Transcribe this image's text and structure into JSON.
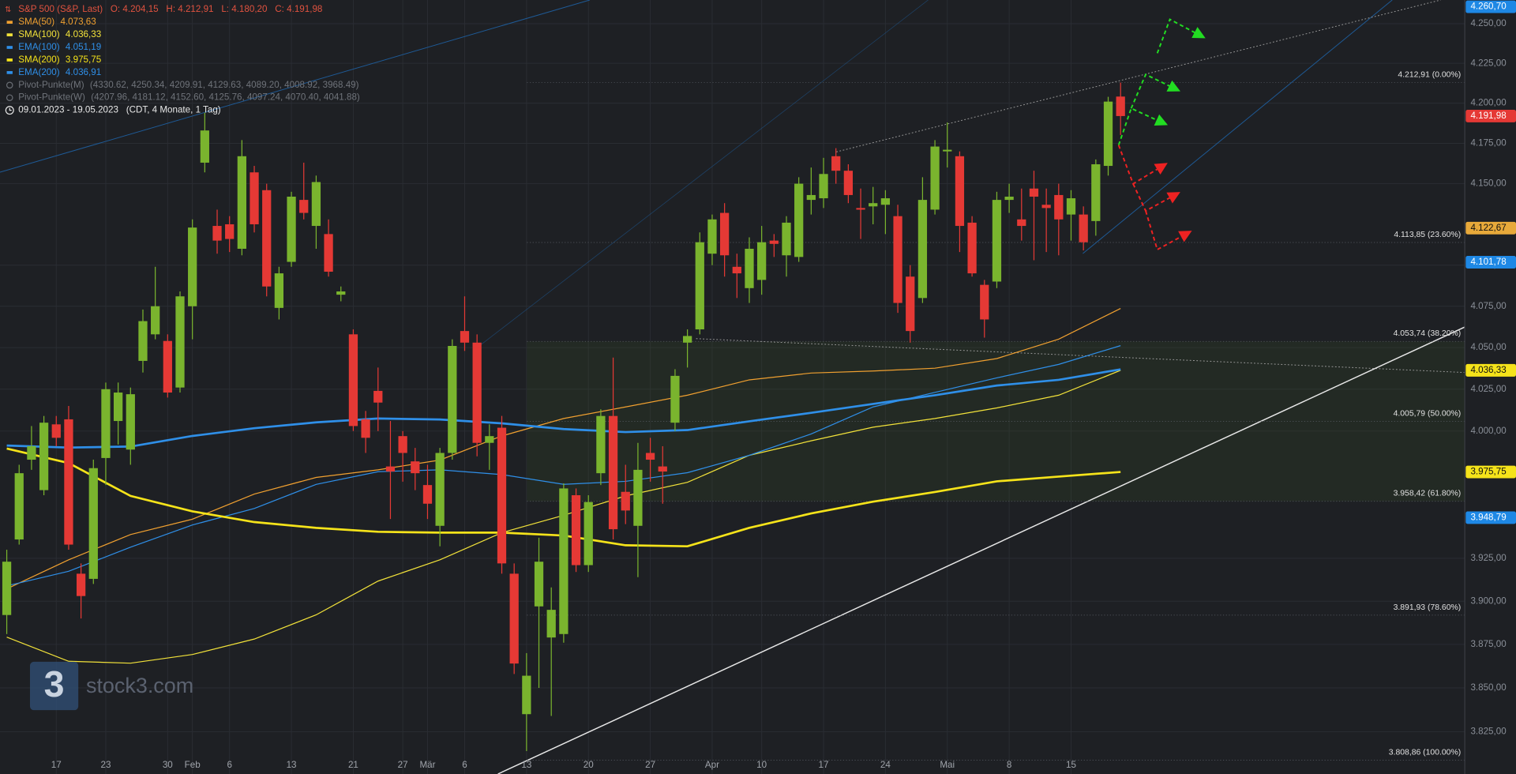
{
  "chart_data": {
    "type": "candlestick",
    "header": {
      "symbol": "S&P 500 (S&P, Last)",
      "ohlc": [
        "O: 4.204,15",
        "H: 4.212,91",
        "L: 4.180,20",
        "C: 4.191,98"
      ]
    },
    "pivots": [
      {
        "name": "Pivot-Punkte(M)",
        "levels": "(4330.62, 4250.34, 4209.91, 4129.63, 4089.20, 4008.92, 3968.49)"
      },
      {
        "name": "Pivot-Punkte(W)",
        "levels": "(4207.96, 4181.12, 4152.60, 4125.76, 4097.24, 4070.40, 4041.88)"
      }
    ],
    "date_range": "09.01.2023 - 19.05.2023",
    "range_note": "(CDT, 4 Monate, 1 Tag)",
    "watermark": {
      "logo": "3",
      "text": "stock3.com"
    },
    "log_scale": true,
    "grid": true,
    "ylim": [
      3801,
      4265
    ],
    "yticks": [
      {
        "value": 3825,
        "label": "3.825,00"
      },
      {
        "value": 3850,
        "label": "3.850,00"
      },
      {
        "value": 3875,
        "label": "3.875,00"
      },
      {
        "value": 3900,
        "label": "3.900,00"
      },
      {
        "value": 3925,
        "label": "3.925,00"
      },
      {
        "value": 4000,
        "label": "4.000,00"
      },
      {
        "value": 4025,
        "label": "4.025,00"
      },
      {
        "value": 4050,
        "label": "4.050,00"
      },
      {
        "value": 4075,
        "label": "4.075,00"
      },
      {
        "value": 4100,
        "label": "4.100,00"
      },
      {
        "value": 4150,
        "label": "4.150,00"
      },
      {
        "value": 4175,
        "label": "4.175,00"
      },
      {
        "value": 4200,
        "label": "4.200,00"
      },
      {
        "value": 4225,
        "label": "4.225,00"
      },
      {
        "value": 4250,
        "label": "4.250,00"
      }
    ],
    "categories": [
      null,
      null,
      null,
      null,
      "17",
      null,
      null,
      null,
      "23",
      null,
      null,
      null,
      null,
      "30",
      null,
      "Feb",
      null,
      null,
      "6",
      null,
      null,
      null,
      null,
      "13",
      null,
      null,
      null,
      null,
      "21",
      null,
      null,
      null,
      "27",
      null,
      "Mär",
      null,
      null,
      "6",
      null,
      null,
      null,
      null,
      "13",
      null,
      null,
      null,
      null,
      "20",
      null,
      null,
      null,
      null,
      "27",
      null,
      null,
      null,
      null,
      "Apr",
      null,
      null,
      null,
      "10",
      null,
      null,
      null,
      null,
      "17",
      null,
      null,
      null,
      null,
      "24",
      null,
      null,
      null,
      null,
      "Mai",
      null,
      null,
      null,
      null,
      "8",
      null,
      null,
      null,
      null,
      "15",
      null,
      null,
      null,
      null
    ],
    "up_color": "#7ab42e",
    "down_color": "#e53935",
    "open": [
      3892,
      3936,
      3983,
      3965,
      4004,
      4007,
      3916,
      3913,
      3984,
      4006,
      3989,
      4042,
      4058,
      4054,
      4026,
      4075,
      4163,
      4124,
      4125,
      4110,
      4157,
      4146,
      4074,
      4102,
      4140,
      4124,
      4119,
      4082,
      4058,
      4007,
      4024,
      3979,
      3997,
      3982,
      3968,
      3944,
      3987,
      4060,
      4053,
      3993,
      4002,
      3916,
      3835,
      3897,
      3879,
      3881,
      3962,
      3921,
      3975,
      4009,
      3964,
      3944,
      3987,
      3979,
      4005,
      4053,
      4061,
      4107,
      4132,
      4099,
      4086,
      4091,
      4115,
      4106,
      4105,
      4140,
      4141,
      4167,
      4158,
      4135,
      4136,
      4137,
      4130,
      4093,
      4080,
      4134,
      4170,
      4167,
      4126,
      4088,
      4090,
      4140,
      4128,
      4147,
      4137,
      4143,
      4131,
      4131,
      4127,
      4161,
      4204.15
    ],
    "high": [
      3930,
      3980,
      4003,
      4009,
      4009,
      4015,
      3922,
      3983,
      4029,
      4029,
      4026,
      4073,
      4099,
      4058,
      4084,
      4128,
      4194,
      4134,
      4130,
      4177,
      4161,
      4150,
      4099,
      4145,
      4163,
      4155,
      4128,
      4087,
      4061,
      4012,
      4038,
      4006,
      4000,
      3990,
      3980,
      3990,
      4055,
      4081,
      4058,
      4004,
      4009,
      3922,
      3870,
      3937,
      3908,
      3969,
      3966,
      3962,
      4013,
      4044,
      3980,
      3993,
      3996,
      3991,
      4037,
      4061,
      4120,
      4131,
      4138,
      4107,
      4117,
      4124,
      4119,
      4130,
      4154,
      4160,
      4166,
      4172,
      4162,
      4147,
      4148,
      4146,
      4137,
      4100,
      4154,
      4177,
      4188,
      4170,
      4130,
      4091,
      4145,
      4150,
      4147,
      4158,
      4147,
      4150,
      4146,
      4136,
      4165,
      4204,
      4212.91
    ],
    "low": [
      3881,
      3933,
      3977,
      3962,
      3991,
      3930,
      3890,
      3910,
      3968,
      3992,
      3980,
      4035,
      4055,
      4020,
      4023,
      4055,
      4157,
      4107,
      4108,
      4106,
      4120,
      4081,
      4067,
      4099,
      4128,
      4110,
      4093,
      4078,
      4000,
      3987,
      4000,
      3948,
      3970,
      3965,
      3948,
      3932,
      3983,
      4048,
      3985,
      3977,
      3916,
      3858,
      3814,
      3850,
      3834,
      3876,
      3917,
      3917,
      3968,
      3936,
      3945,
      3914,
      3970,
      3957,
      4000,
      4038,
      4058,
      4100,
      4093,
      4080,
      4077,
      4082,
      4105,
      4093,
      4102,
      4131,
      4135,
      4150,
      4138,
      4116,
      4125,
      4119,
      4071,
      4053,
      4077,
      4131,
      4160,
      4108,
      4093,
      4056,
      4086,
      4132,
      4115,
      4103,
      4108,
      4106,
      4115,
      4109,
      4118,
      4155,
      4180.2
    ],
    "close": [
      3923,
      3975,
      3991,
      4005,
      3996,
      3933,
      3903,
      3978,
      4025,
      4023,
      4022,
      4066,
      4075,
      4023,
      4081,
      4123,
      4183,
      4115,
      4116,
      4167,
      4125,
      4087,
      4095,
      4142,
      4132,
      4151,
      4096,
      4084,
      4003,
      3996,
      4017,
      3976,
      3987,
      3975,
      3957,
      3987,
      4051,
      4053,
      3993,
      3997,
      3922,
      3864,
      3857,
      3923,
      3895,
      3966,
      3921,
      3958,
      4009,
      3942,
      3953,
      3977,
      3983,
      3976,
      4033,
      4057,
      4114,
      4128,
      4106,
      4095,
      4110,
      4114,
      4113,
      4126,
      4150,
      4143,
      4156,
      4158,
      4143,
      4134,
      4138,
      4141,
      4077,
      4060,
      4140,
      4173,
      4171,
      4124,
      4095,
      4067,
      4140,
      4142,
      4124,
      4142,
      4135,
      4128,
      4141,
      4114,
      4162,
      4201,
      4191.98
    ],
    "series": [
      {
        "name": "SMA(50)",
        "color": "#f0a030",
        "width": 1,
        "last_label": "4.073,63",
        "x": [
          0,
          5,
          10,
          15,
          20,
          25,
          30,
          35,
          40,
          45,
          50,
          55,
          60,
          65,
          70,
          75,
          80,
          85,
          90
        ],
        "values": [
          3907.2,
          3924.1,
          3938.9,
          3947.9,
          3962.7,
          3972.5,
          3977,
          3982.8,
          3997.1,
          4007.5,
          4014.4,
          4021.4,
          4030.6,
          4034.7,
          4035.9,
          4037.6,
          4043.4,
          4055.1,
          4073.63
        ]
      },
      {
        "name": "SMA(100)",
        "color": "#f2e23a",
        "width": 1,
        "last_label": "4.036,33",
        "x": [
          0,
          5,
          10,
          15,
          20,
          25,
          30,
          35,
          40,
          45,
          50,
          55,
          60,
          65,
          70,
          75,
          80,
          85,
          90
        ],
        "values": [
          3879.2,
          3865.3,
          3864.2,
          3869.2,
          3878.1,
          3892.1,
          3911.7,
          3924.1,
          3940,
          3950.2,
          3961.6,
          3969.6,
          3985.6,
          3994.2,
          4002.3,
          4007.5,
          4013.8,
          4021.4,
          4036.33
        ]
      },
      {
        "name": "EMA(100)",
        "color": "#2f8fe8",
        "width": 1,
        "last_label": "4.051,19",
        "x": [
          0,
          5,
          10,
          15,
          20,
          25,
          30,
          35,
          40,
          45,
          50,
          55,
          60,
          65,
          70,
          75,
          80,
          85,
          90
        ],
        "values": [
          3908.9,
          3917.4,
          3931.5,
          3944.5,
          3954.2,
          3968.4,
          3975.9,
          3977,
          3974.2,
          3968.4,
          3970.2,
          3975.3,
          3985.6,
          3998.3,
          4014.4,
          4023.1,
          4031.8,
          4039.9,
          4051.19
        ]
      },
      {
        "name": "SMA(200)",
        "color": "#f5e31a",
        "width": 2.2,
        "last_label": "3.975,75",
        "x": [
          0,
          5,
          10,
          15,
          20,
          25,
          30,
          35,
          40,
          45,
          50,
          55,
          60,
          65,
          70,
          75,
          80,
          85,
          90
        ],
        "values": [
          3989.6,
          3981,
          3961.6,
          3952.5,
          3946.2,
          3942.8,
          3940.5,
          3940,
          3940,
          3938.3,
          3932.6,
          3932,
          3942.8,
          3951.3,
          3958.2,
          3963.9,
          3970.2,
          3973,
          3975.75
        ]
      },
      {
        "name": "EMA(200)",
        "color": "#2f8fe8",
        "width": 2.2,
        "last_label": "4.036,91",
        "x": [
          0,
          5,
          10,
          15,
          20,
          25,
          30,
          35,
          40,
          45,
          50,
          55,
          60,
          65,
          70,
          75,
          80,
          85,
          90
        ],
        "values": [
          3991.4,
          3990.2,
          3990.8,
          3997.1,
          4001.7,
          4005.2,
          4007.5,
          4006.9,
          4004.6,
          4001.2,
          3999.4,
          4000.6,
          4005.8,
          4010.9,
          4016.2,
          4021.4,
          4027.2,
          4030.6,
          4036.91
        ]
      }
    ],
    "fib_levels": [
      {
        "value": 4212.91,
        "label": "4.212,91 (0.00%)"
      },
      {
        "value": 4113.85,
        "label": "4.113,85 (23.60%)"
      },
      {
        "value": 4053.74,
        "label": "4.053,74 (38.20%)"
      },
      {
        "value": 4005.79,
        "label": "4.005,79 (50.00%)"
      },
      {
        "value": 3958.42,
        "label": "3.958,42 (61.80%)"
      },
      {
        "value": 3891.93,
        "label": "3.891,93 (78.60%)"
      },
      {
        "value": 3808.86,
        "label": "3.808,86 (100.00%)"
      }
    ],
    "price_markers": [
      {
        "value": 4260.7,
        "label": "4.260,70",
        "color": "#1e88e5"
      },
      {
        "value": 4191.98,
        "label": "4.191,98",
        "color": "#e53935"
      },
      {
        "value": 4122.67,
        "label": "4.122,67",
        "color": "#e8a93a"
      },
      {
        "value": 4101.78,
        "label": "4.101,78",
        "color": "#1e88e5"
      },
      {
        "value": 4036.33,
        "label": "4.036,33",
        "color": "#f5e31a"
      },
      {
        "value": 3975.75,
        "label": "3.975,75",
        "color": "#f5e31a"
      },
      {
        "value": 3948.79,
        "label": "3.948,79",
        "color": "#1e88e5"
      }
    ]
  }
}
